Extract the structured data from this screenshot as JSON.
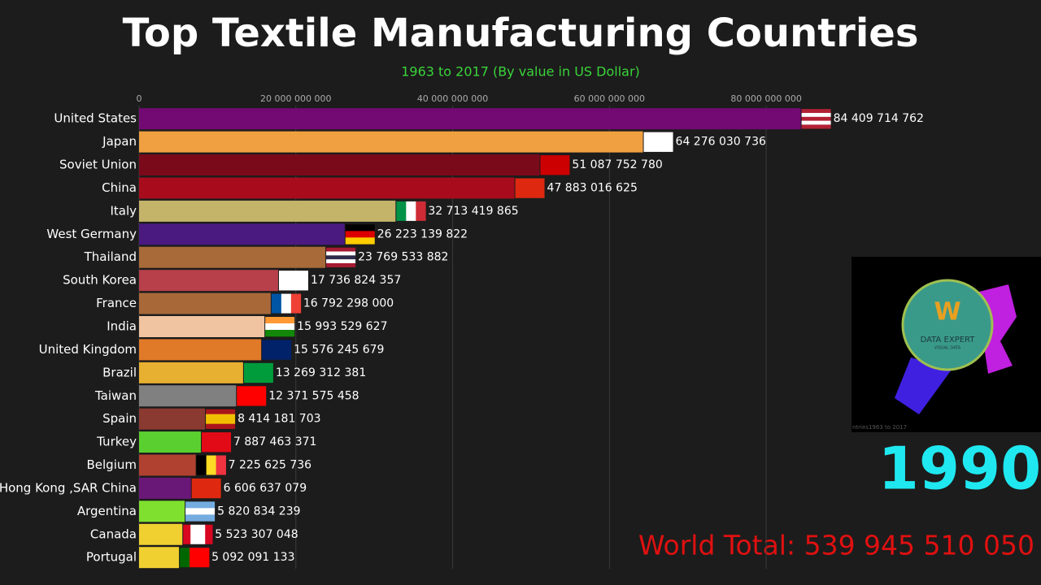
{
  "chart_data": {
    "type": "hbar",
    "title": "Top Textile Manufacturing Countries",
    "subtitle": "1963 to 2017 (By value in US Dollar)",
    "year": "1990",
    "total": "World Total: 539 945 510 050",
    "categories": [
      "United States",
      "Japan",
      "Soviet Union",
      "China",
      "Italy",
      "West Germany",
      "Thailand",
      "South Korea",
      "France",
      "India",
      "United Kingdom",
      "Brazil",
      "Taiwan",
      "Spain",
      "Turkey",
      "Belgium",
      "Hong Kong ,SAR China",
      "Argentina",
      "Canada",
      "Portugal"
    ],
    "values": [
      84409714762,
      64276030736,
      51087752780,
      47883016625,
      32713419865,
      26223139822,
      23769533882,
      17736824357,
      16792298000,
      15993529627,
      15576245679,
      13269312381,
      12371575458,
      8414181703,
      7887463371,
      7225625736,
      6606637079,
      5820834239,
      5523307048,
      5092091133
    ],
    "value_labels": [
      "84 409 714 762",
      "64 276 030 736",
      "51 087 752 780",
      "47 883 016 625",
      "32 713 419 865",
      "26 223 139 822",
      "23 769 533 882",
      "17 736 824 357",
      "16 792 298 000",
      "15 993 529 627",
      "15 576 245 679",
      "13 269 312 381",
      "12 371 575 458",
      "8 414 181 703",
      "7 887 463 371",
      "7 225 625 736",
      "6 606 637 079",
      "5 820 834 239",
      "5 523 307 048",
      "5 092 091 133"
    ],
    "colors": [
      "#730a73",
      "#f0a040",
      "#7a0a1a",
      "#a80c1c",
      "#c4b46a",
      "#4a1a80",
      "#a86a38",
      "#b8404a",
      "#a86838",
      "#f0c4a0",
      "#e07a28",
      "#e8b030",
      "#808080",
      "#8a3a30",
      "#5ad030",
      "#b04030",
      "#6a1878",
      "#80e030",
      "#f0d030",
      "#f0d030"
    ],
    "xlim": [
      0,
      90000000000
    ],
    "xticks": [
      0,
      {
        "value": 20000000000,
        "label": "20 000 000 000"
      },
      {
        "value": 40000000000,
        "label": "40 000 000 000"
      },
      {
        "value": 60000000000,
        "label": "60 000 000 000"
      },
      {
        "value": 80000000000,
        "label": "80 000 000 000"
      }
    ],
    "grid": true
  },
  "logo": {
    "mark": "W",
    "title": "DATA EXPERT",
    "subtitle": "VISUAL DATA",
    "caption": "ntries1963 to 2017"
  }
}
